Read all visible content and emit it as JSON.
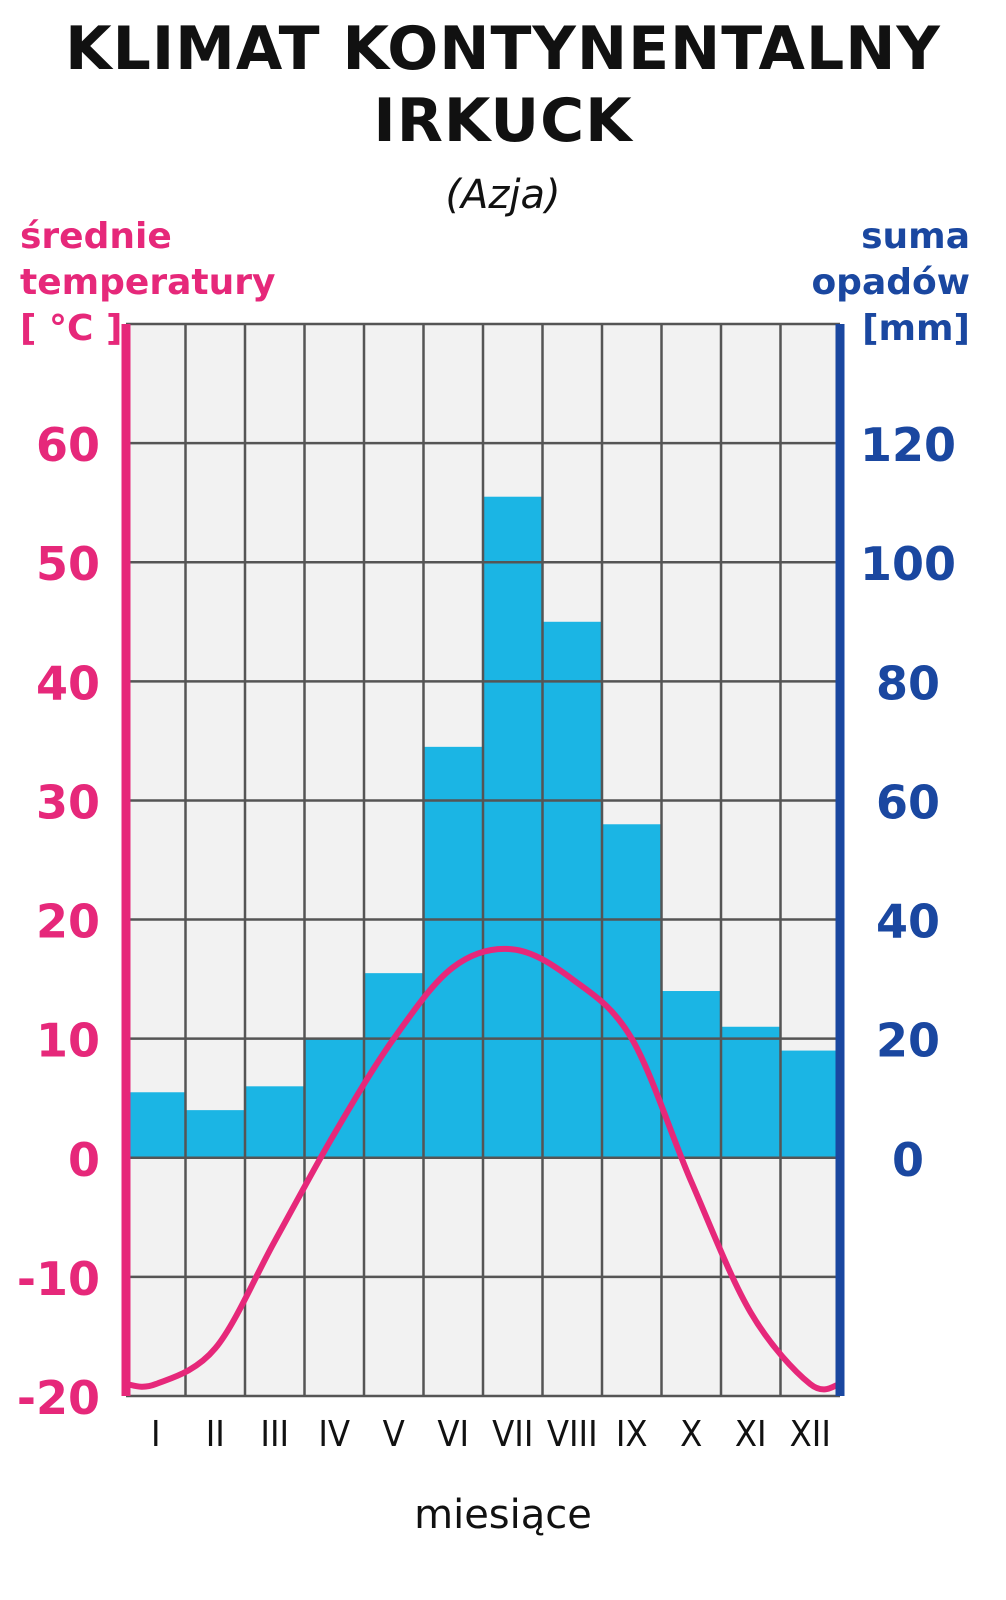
{
  "chart_data": {
    "type": "bar+line",
    "title_line1": "KLIMAT KONTYNENTALNY",
    "title_line2": "IRKUCK",
    "subtitle": "(Azja)",
    "left_axis_label": [
      "średnie",
      "temperatury",
      "[ °C ]"
    ],
    "right_axis_label": [
      "suma",
      "opadów",
      "[mm]"
    ],
    "xlabel": "miesiące",
    "categories": [
      "I",
      "II",
      "III",
      "IV",
      "V",
      "VI",
      "VII",
      "VIII",
      "IX",
      "X",
      "XI",
      "XII"
    ],
    "temperature_ticks": [
      "60",
      "50",
      "40",
      "30",
      "20",
      "10",
      "0",
      "-10",
      "-20"
    ],
    "precipitation_ticks": [
      "120",
      "100",
      "80",
      "60",
      "40",
      "20",
      "0"
    ],
    "temperature_range": [
      -20,
      70
    ],
    "precipitation_range": [
      0,
      120
    ],
    "series": [
      {
        "name": "opady",
        "kind": "bar",
        "axis": "right",
        "color": "#1bb5e4",
        "values": [
          11,
          8,
          12,
          20,
          31,
          69,
          111,
          90,
          56,
          28,
          22,
          18
        ]
      },
      {
        "name": "temperatura",
        "kind": "line",
        "axis": "left",
        "color": "#e6287a",
        "values": [
          -19,
          -16,
          -7,
          2,
          10,
          16,
          17.5,
          15,
          10,
          -2,
          -13,
          -19
        ]
      }
    ],
    "grid": true,
    "colors": {
      "temp_axis": "#e6287a",
      "precip_axis": "#1a47a0",
      "grid": "#555555",
      "plot_bg": "#f2f2f2"
    }
  }
}
